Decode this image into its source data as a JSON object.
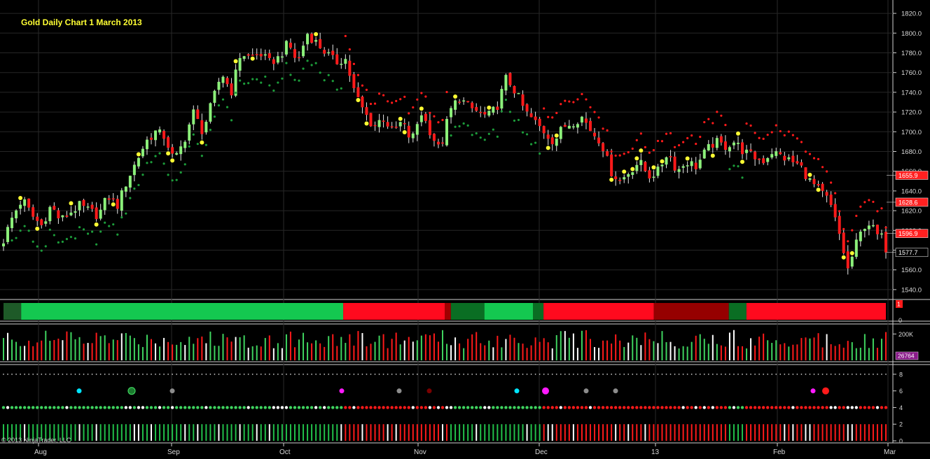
{
  "header": {
    "title": "Gold Daily Chart 1 March 2013"
  },
  "footer": {
    "copyright": "© 2013 NinjaTrader, LLC"
  },
  "chart_data": [
    {
      "type": "candlestick",
      "panel": "price",
      "title": "Gold Daily Chart 1 March 2013",
      "x_tick_labels": [
        "Aug",
        "Sep",
        "Oct",
        "Nov",
        "Dec",
        "13",
        "Feb",
        "Mar"
      ],
      "y_ticks": [
        1540,
        1560,
        1580,
        1600,
        1620,
        1640,
        1660,
        1680,
        1700,
        1720,
        1740,
        1760,
        1780,
        1800,
        1820
      ],
      "y_tick_labels": [
        "1540.0",
        "1560.0",
        "1580.0",
        "1600.0",
        "1620.0",
        "1640.0",
        "1660.0",
        "1680.0",
        "1700.0",
        "1720.0",
        "1740.0",
        "1760.0",
        "1780.0",
        "1800.0",
        "1820.0"
      ],
      "ylim": [
        1530,
        1830
      ],
      "price_markers": [
        {
          "label": "1655.9",
          "value": 1655.9,
          "color": "#ff2020"
        },
        {
          "label": "1628.6",
          "value": 1628.6,
          "color": "#ff2020"
        },
        {
          "label": "1596.9",
          "value": 1596.9,
          "color": "#ff2020"
        },
        {
          "label": "1577.7",
          "value": 1577.7,
          "color": "#000000"
        }
      ],
      "colors": {
        "up": "#8cf07a",
        "down": "#ff1a1a",
        "support": "#1c9c3a",
        "resistance": "#ff1a1a",
        "signal": "#ffff33"
      },
      "close_anchors": [
        1590,
        1615,
        1632,
        1615,
        1605,
        1625,
        1610,
        1618,
        1625,
        1620,
        1615,
        1635,
        1625,
        1650,
        1670,
        1690,
        1700,
        1695,
        1670,
        1690,
        1720,
        1700,
        1730,
        1760,
        1740,
        1780,
        1775,
        1780,
        1770,
        1775,
        1790,
        1770,
        1800,
        1790,
        1780,
        1770,
        1775,
        1740,
        1720,
        1705,
        1715,
        1700,
        1710,
        1690,
        1720,
        1700,
        1680,
        1720,
        1735,
        1725,
        1720,
        1715,
        1725,
        1755,
        1740,
        1720,
        1710,
        1700,
        1690,
        1705,
        1710,
        1715,
        1700,
        1690,
        1660,
        1650,
        1660,
        1670,
        1655,
        1660,
        1680,
        1660,
        1670,
        1665,
        1680,
        1690,
        1685,
        1690,
        1680,
        1675,
        1670,
        1680,
        1675,
        1670,
        1665,
        1650,
        1640,
        1630,
        1600,
        1560,
        1590,
        1610,
        1596.9,
        1577.7
      ]
    },
    {
      "type": "bar",
      "panel": "trend-ribbon",
      "y_tick_labels": [
        "1",
        "0"
      ],
      "segments": [
        {
          "until": 0.02,
          "color": "#1e5a28"
        },
        {
          "until": 0.385,
          "color": "#14c850"
        },
        {
          "until": 0.5,
          "color": "#ff0a1e"
        },
        {
          "until": 0.507,
          "color": "#a00000"
        },
        {
          "until": 0.545,
          "color": "#0a6e23"
        },
        {
          "until": 0.6,
          "color": "#14c850"
        },
        {
          "until": 0.612,
          "color": "#0a6e23"
        },
        {
          "until": 0.737,
          "color": "#ff0a1e"
        },
        {
          "until": 0.822,
          "color": "#960000"
        },
        {
          "until": 0.842,
          "color": "#0a6e23"
        },
        {
          "until": 1.0,
          "color": "#ff0a1e"
        }
      ]
    },
    {
      "type": "bar",
      "panel": "volume",
      "y_tick_labels": [
        "200K"
      ],
      "last_value_label": "26764",
      "ylim": [
        0,
        260000
      ]
    },
    {
      "type": "scatter",
      "panel": "indicator",
      "y_ticks": [
        0,
        2,
        4,
        6,
        8
      ],
      "y_tick_labels": [
        "0",
        "2",
        "4",
        "6",
        "8"
      ],
      "signal_dots": [
        "#00e5ff",
        "#1b7a2e",
        "#8c8c8c",
        "#ff1aff",
        "#8c8c8c",
        "#7a0000",
        "#00e5ff",
        "#ff1aff",
        "#8c8c8c",
        "#8c8c8c",
        "#ff1aff",
        "#ff1a1a"
      ]
    }
  ]
}
